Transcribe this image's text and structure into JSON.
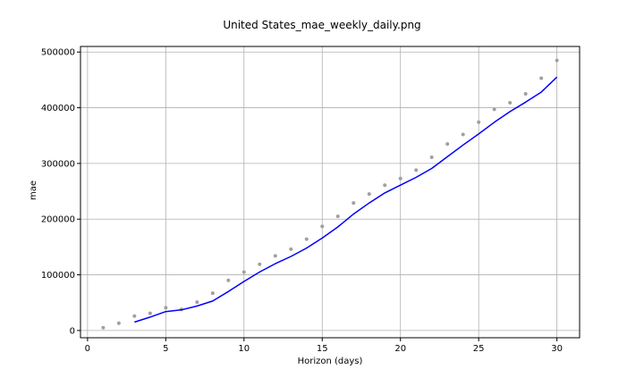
{
  "chart_data": {
    "type": "line",
    "title": "United States_mae_weekly_daily.png",
    "xlabel": "Horizon (days)",
    "ylabel": "mae",
    "xlim": [
      -0.45,
      31.45
    ],
    "ylim": [
      -13000,
      510000
    ],
    "xticks": [
      0,
      5,
      10,
      15,
      20,
      25,
      30
    ],
    "yticks": [
      0,
      100000,
      200000,
      300000,
      400000,
      500000
    ],
    "grid": true,
    "series": [
      {
        "kind": "scatter",
        "color": "#a0a0a0",
        "x": [
          1,
          2,
          3,
          4,
          5,
          6,
          7,
          8,
          9,
          10,
          11,
          12,
          13,
          14,
          15,
          16,
          17,
          18,
          19,
          20,
          21,
          22,
          23,
          24,
          25,
          26,
          27,
          28,
          29,
          30
        ],
        "values": [
          5000,
          13000,
          26000,
          31000,
          41000,
          38000,
          51000,
          67000,
          90000,
          105000,
          119000,
          134000,
          146000,
          164000,
          187000,
          205000,
          229000,
          245000,
          261000,
          273000,
          288000,
          311000,
          335000,
          352000,
          374000,
          397000,
          409000,
          425000,
          453000,
          485000
        ]
      },
      {
        "kind": "line",
        "color": "#0000ff",
        "x": [
          3,
          4,
          5,
          6,
          7,
          8,
          9,
          10,
          11,
          12,
          13,
          14,
          15,
          16,
          17,
          18,
          19,
          20,
          21,
          22,
          23,
          24,
          25,
          26,
          27,
          28,
          29,
          30
        ],
        "values": [
          15000,
          24000,
          34000,
          37000,
          44000,
          53000,
          70000,
          88000,
          105000,
          120000,
          133000,
          148000,
          166000,
          186000,
          209000,
          229000,
          247000,
          261000,
          275000,
          291000,
          312000,
          333000,
          353000,
          374000,
          393000,
          410000,
          428000,
          455000
        ]
      }
    ]
  }
}
